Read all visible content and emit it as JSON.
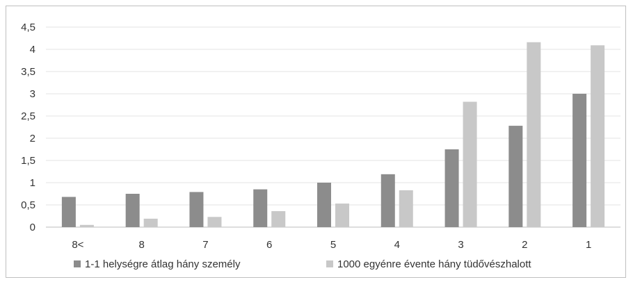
{
  "chart_data": {
    "type": "bar",
    "categories": [
      "8<",
      "8",
      "7",
      "6",
      "5",
      "4",
      "3",
      "2",
      "1"
    ],
    "series": [
      {
        "name": "1-1 helységre átlag hány személy",
        "values": [
          0.68,
          0.75,
          0.79,
          0.85,
          1.0,
          1.19,
          1.75,
          2.28,
          3.0
        ],
        "color": "#8c8c8c"
      },
      {
        "name": "1000 egyénre évente hány tüdővészhalott",
        "values": [
          0.05,
          0.19,
          0.23,
          0.36,
          0.53,
          0.83,
          2.82,
          4.16,
          4.09
        ],
        "color": "#c8c8c8"
      }
    ],
    "yticks": [
      "0",
      "0,5",
      "1",
      "1,5",
      "2",
      "2,5",
      "3",
      "3,5",
      "4",
      "4,5"
    ],
    "ylim": [
      0,
      4.5
    ],
    "grid": true,
    "legend": "bottom"
  }
}
